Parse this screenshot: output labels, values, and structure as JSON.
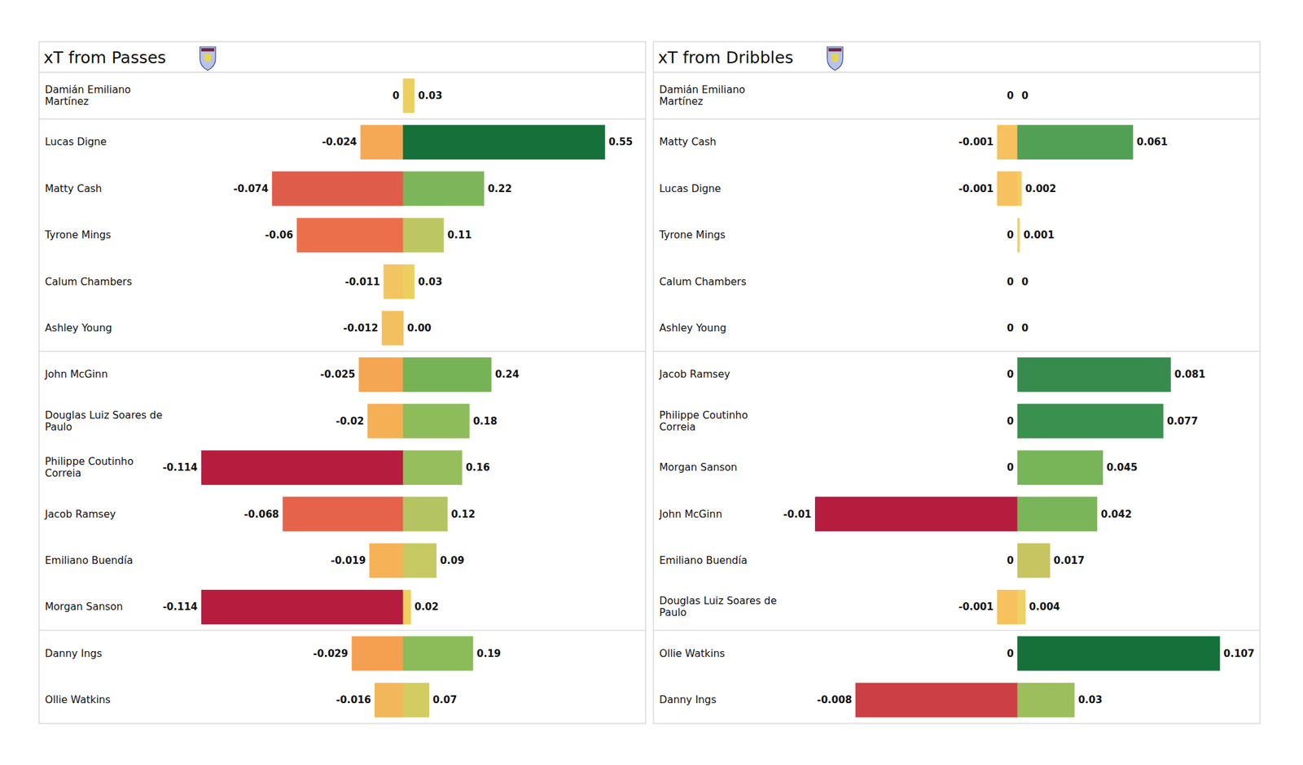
{
  "chart_data": [
    {
      "type": "bar",
      "title": "xT from Passes",
      "orientation": "horizontal",
      "data_labels": true,
      "tick_labels": false,
      "categories": [
        "Damián Emiliano Martínez",
        "Lucas Digne",
        "Matty Cash",
        "Tyrone Mings",
        "Calum Chambers",
        "Ashley Young",
        "John McGinn",
        "Douglas Luiz Soares de Paulo",
        "Philippe Coutinho Correia",
        "Jacob Ramsey",
        "Emiliano Buendía",
        "Morgan Sanson",
        "Danny Ings",
        "Ollie Watkins"
      ],
      "ylim": [
        -0.12,
        0
      ],
      "y2lim": [
        0,
        0.58
      ],
      "series": [
        {
          "axis": "y",
          "values": [
            0,
            -0.024,
            -0.074,
            -0.06,
            -0.011,
            -0.012,
            -0.025,
            -0.02,
            -0.114,
            -0.068,
            -0.019,
            -0.114,
            -0.029,
            -0.016
          ],
          "colors": [
            "#f3d266",
            "#f6a955",
            "#e05c4a",
            "#ec6f4c",
            "#f3c462",
            "#f3c060",
            "#f5a652",
            "#f5b055",
            "#b51c3e",
            "#e5634b",
            "#f5b257",
            "#b51c3e",
            "#f5a050",
            "#f3b75b"
          ]
        },
        {
          "axis": "y2",
          "values": [
            0.03,
            0.55,
            0.22,
            0.11,
            0.03,
            0,
            0.24,
            0.18,
            0.16,
            0.12,
            0.09,
            0.02,
            0.19,
            0.07
          ],
          "value_labels": [
            "0.03",
            "0.55",
            "0.22",
            "0.11",
            "0.03",
            "0.00",
            "0.24",
            "0.18",
            "0.16",
            "0.12",
            "0.09",
            "0.02",
            "0.19",
            "0.07"
          ],
          "colors": [
            "#ecd05e",
            "#15703a",
            "#7db65a",
            "#bcc763",
            "#ecd05e",
            "#f2cc60",
            "#76b356",
            "#8fbc5b",
            "#96be5c",
            "#b5c462",
            "#c7c963",
            "#efd05e",
            "#8cbb5a",
            "#d3cc63"
          ]
        }
      ]
    },
    {
      "type": "bar",
      "title": "xT from Dribbles",
      "orientation": "horizontal",
      "data_labels": true,
      "tick_labels": false,
      "categories": [
        "Damián Emiliano Martínez",
        "Matty Cash",
        "Lucas Digne",
        "Tyrone Mings",
        "Calum Chambers",
        "Ashley Young",
        "Jacob Ramsey",
        "Philippe Coutinho Correia",
        "Morgan Sanson",
        "John McGinn",
        "Emiliano Buendía",
        "Douglas Luiz Soares de Paulo",
        "Ollie Watkins",
        "Danny Ings"
      ],
      "ylim": [
        -0.0105,
        0
      ],
      "y2lim": [
        0,
        0.1125
      ],
      "series": [
        {
          "axis": "y",
          "values": [
            0,
            -0.001,
            -0.001,
            0,
            0,
            0,
            0,
            0,
            0,
            -0.01,
            0,
            -0.001,
            0,
            -0.008
          ],
          "colors": [
            "#f3d266",
            "#f6c15e",
            "#f6c15e",
            "#f3d266",
            "#f3d266",
            "#f3d266",
            "#f3d266",
            "#f3d266",
            "#f3d266",
            "#b51c3e",
            "#f3d266",
            "#f6c15e",
            "#f3d266",
            "#cc3f44"
          ]
        },
        {
          "axis": "y2",
          "values": [
            0,
            0.061,
            0.002,
            0.001,
            0,
            0,
            0.081,
            0.077,
            0.045,
            0.042,
            0.017,
            0.004,
            0.107,
            0.03
          ],
          "colors": [
            "#f3d266",
            "#52a055",
            "#f3cc62",
            "#f2d064",
            "#f3d266",
            "#f3d266",
            "#378c4d",
            "#3a904e",
            "#78b458",
            "#7ab559",
            "#c7c462",
            "#efd064",
            "#15703a",
            "#9cbe5c"
          ]
        }
      ]
    }
  ]
}
